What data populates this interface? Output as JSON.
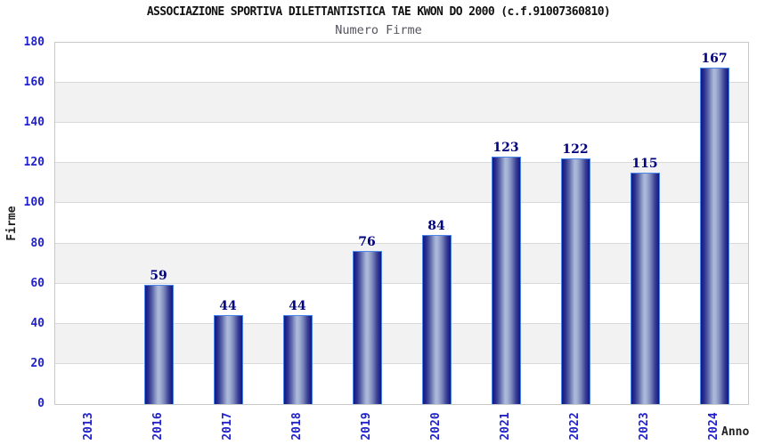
{
  "chart_data": {
    "type": "bar",
    "title": "ASSOCIAZIONE SPORTIVA DILETTANTISTICA TAE KWON DO 2000 (c.f.91007360810)",
    "subtitle": "Numero Firme",
    "xlabel": "Anno",
    "ylabel": "Firme",
    "categories": [
      "2013",
      "2016",
      "2017",
      "2018",
      "2019",
      "2020",
      "2021",
      "2022",
      "2023",
      "2024"
    ],
    "values": [
      0,
      59,
      44,
      44,
      76,
      84,
      123,
      122,
      115,
      167
    ],
    "ylim": [
      0,
      180
    ],
    "ytick_step": 20,
    "yticks": [
      0,
      20,
      40,
      60,
      80,
      100,
      120,
      140,
      160,
      180
    ],
    "grid": "horizontal gridlines every 20 with alternating gray bands",
    "legend": "none",
    "bar_labels_shown": true,
    "colors": {
      "background": "#ffffff",
      "title": "#111111",
      "subtitle": "#55555e",
      "axis_tick_label": "#2222cc",
      "axis_title": "#222222",
      "value_label": "#00007d",
      "bar_dark": "#141483",
      "bar_light": "#aeb9da",
      "bar_edge": "#4b86e8",
      "band_fill": "#f2f2f2",
      "gridline": "#d9d9d9",
      "plot_border": "#c8c8c8"
    }
  }
}
